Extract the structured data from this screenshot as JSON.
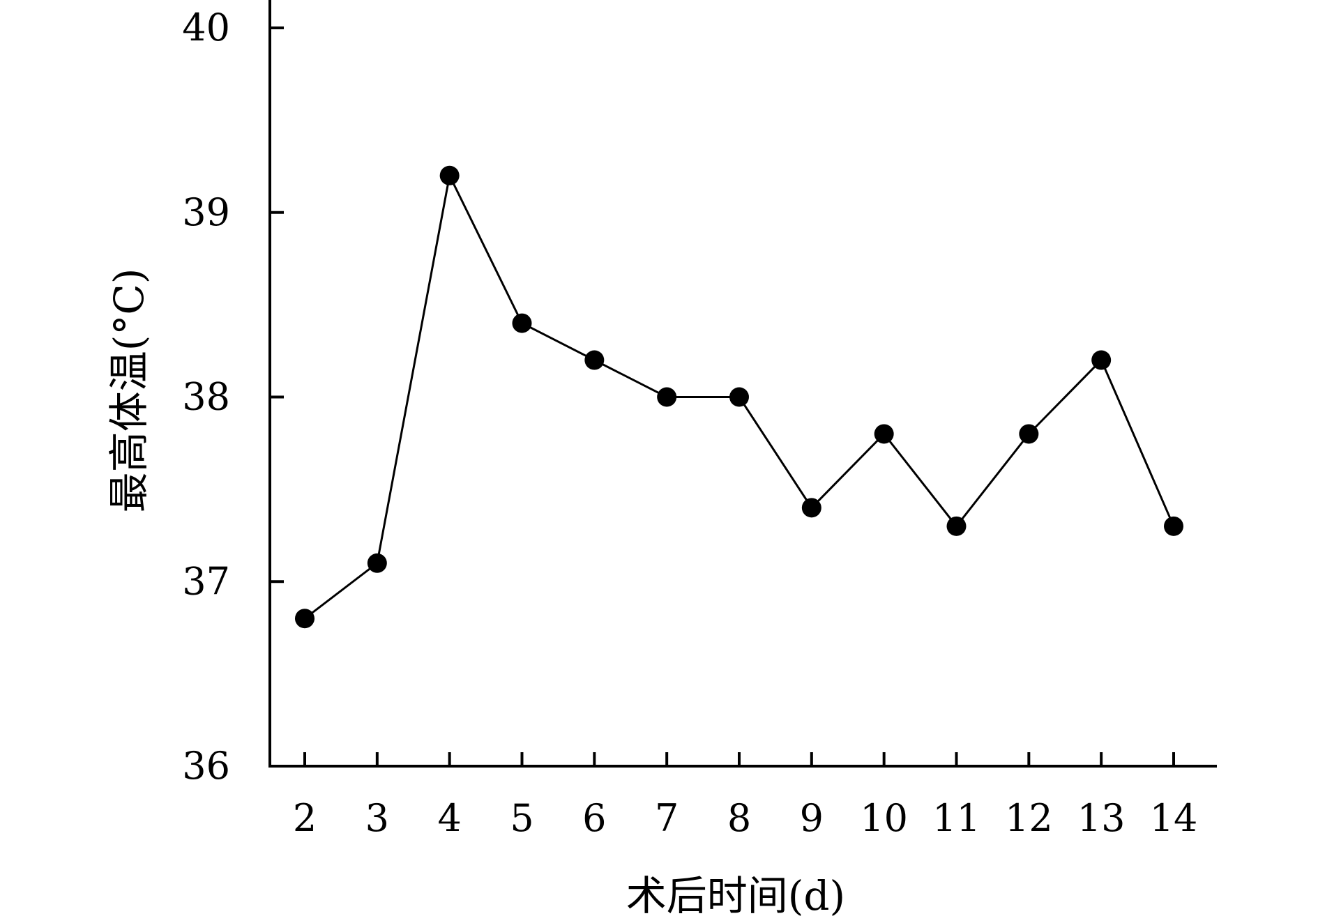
{
  "chart_data": {
    "type": "line",
    "xlabel": "术后时间(d)",
    "ylabel": "最高体温(°C)",
    "x": [
      2,
      3,
      4,
      5,
      6,
      7,
      8,
      9,
      10,
      11,
      12,
      13,
      14
    ],
    "xticks": [
      "2",
      "3",
      "4",
      "5",
      "6",
      "7",
      "8",
      "9",
      "10",
      "11",
      "12",
      "13",
      "14"
    ],
    "yticks": [
      "36",
      "37",
      "38",
      "39",
      "40"
    ],
    "ylim": [
      36,
      40
    ],
    "series": [
      {
        "values": [
          36.8,
          37.1,
          39.2,
          38.4,
          38.2,
          38.0,
          38.0,
          37.4,
          37.8,
          37.3,
          37.8,
          38.2,
          37.3
        ]
      }
    ],
    "grid": false,
    "colors": {
      "line": "#000000",
      "marker": "#000000"
    }
  }
}
